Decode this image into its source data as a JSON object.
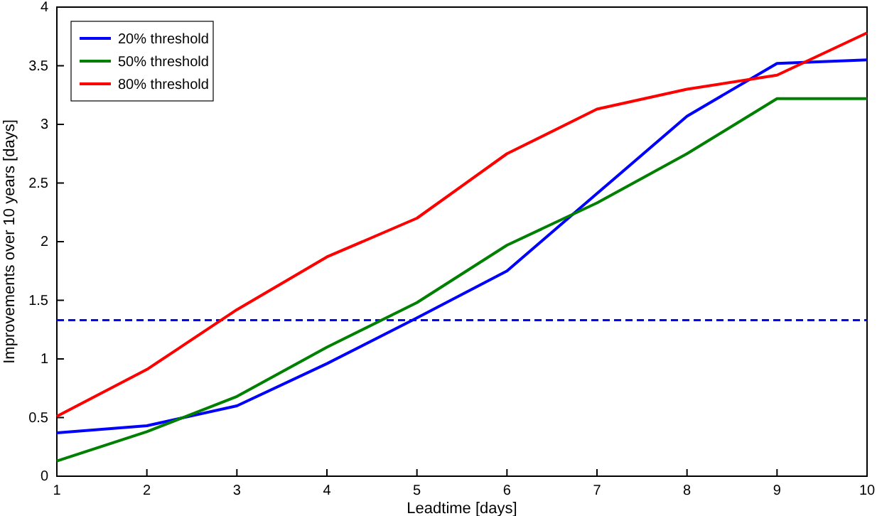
{
  "chart_data": {
    "type": "line",
    "xlabel": "Leadtime [days]",
    "ylabel": "Improvements over 10 years [days]",
    "x": [
      1,
      2,
      3,
      4,
      5,
      6,
      7,
      8,
      9,
      10
    ],
    "xlim": [
      1,
      10
    ],
    "xticks": [
      1,
      2,
      3,
      4,
      5,
      6,
      7,
      8,
      9,
      10
    ],
    "ylim": [
      0,
      4
    ],
    "yticks": [
      0,
      0.5,
      1,
      1.5,
      2,
      2.5,
      3,
      3.5,
      4
    ],
    "grid": false,
    "legend": "top left",
    "marker": "none",
    "line_style": "solid",
    "series": [
      {
        "name": "20% threshold",
        "color": "#0000ff",
        "values": [
          0.37,
          0.43,
          0.6,
          0.96,
          1.35,
          1.75,
          2.41,
          3.07,
          3.52,
          3.55
        ]
      },
      {
        "name": "50% threshold",
        "color": "#008000",
        "values": [
          0.13,
          0.38,
          0.68,
          1.1,
          1.48,
          1.97,
          2.33,
          2.75,
          3.22,
          3.22
        ]
      },
      {
        "name": "80% threshold",
        "color": "#ff0000",
        "values": [
          0.51,
          0.91,
          1.42,
          1.87,
          2.2,
          2.75,
          3.13,
          3.3,
          3.42,
          3.78
        ]
      }
    ],
    "ref_lines": [
      {
        "axis": "y",
        "value": 1.33,
        "color": "#0000ff",
        "line_style": "dashed"
      }
    ]
  }
}
